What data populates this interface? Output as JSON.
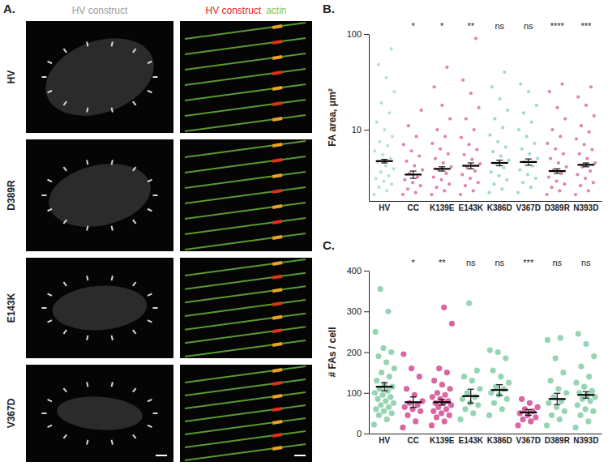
{
  "panel_a": {
    "letter": "A.",
    "column_titles": [
      {
        "parts": [
          {
            "text": "HV construct",
            "color": "#9a9a9a"
          }
        ]
      },
      {
        "parts": [
          {
            "text": "HV construct",
            "color": "#e0201c"
          },
          {
            "text": "actin",
            "color": "#8bc34a"
          }
        ]
      }
    ],
    "rows": [
      "HV",
      "D389R",
      "E143K",
      "V367D"
    ]
  },
  "chart_data": [
    {
      "type": "scatter",
      "panel_label": "B.",
      "y_label": "FA area, μm²",
      "log": "y",
      "categories": [
        "HV",
        "CC",
        "K139E",
        "E143K",
        "K386D",
        "V367D",
        "D389R",
        "N393D"
      ],
      "colors": [
        "#93d4aa",
        "#d0408c",
        "#d0408c",
        "#d0408c",
        "#6cc3bd",
        "#6cc3bd",
        "#d0408c",
        "#d0408c"
      ],
      "ylim": [
        1.8,
        100
      ],
      "yticks": [
        10,
        100
      ],
      "annotations": [
        null,
        "*",
        "*",
        "**",
        "ns",
        "ns",
        "****",
        "***"
      ],
      "mean": [
        4.7,
        3.4,
        3.9,
        4.2,
        4.5,
        4.6,
        3.7,
        4.3
      ],
      "sem": [
        0.2,
        0.3,
        0.2,
        0.3,
        0.3,
        0.35,
        0.2,
        0.2
      ],
      "points": [
        [
          2.1,
          2.3,
          2.5,
          2.7,
          2.9,
          3.1,
          3.3,
          3.6,
          3.9,
          4.2,
          4.6,
          5,
          5.5,
          6,
          6.8,
          7.5,
          8.5,
          10,
          12,
          15,
          19,
          25,
          35,
          48,
          70
        ],
        [
          2.1,
          2.2,
          2.4,
          2.6,
          2.8,
          3,
          3.2,
          3.5,
          3.8,
          4.2,
          4.7,
          5.3,
          6,
          7,
          8.5,
          11,
          16
        ],
        [
          2.1,
          2.3,
          2.5,
          2.7,
          3,
          3.2,
          3.5,
          3.8,
          4.1,
          4.5,
          5,
          5.6,
          6.3,
          7.2,
          8.5,
          10,
          13,
          18,
          28,
          45
        ],
        [
          2.1,
          2.3,
          2.6,
          2.8,
          3.1,
          3.4,
          3.7,
          4,
          4.4,
          4.9,
          5.5,
          6.2,
          7,
          8.3,
          10,
          13,
          17,
          24,
          33,
          90
        ],
        [
          2.2,
          2.4,
          2.7,
          3,
          3.3,
          3.6,
          4,
          4.4,
          4.8,
          5.3,
          5.9,
          6.6,
          7.5,
          8.8,
          10.5,
          13,
          16,
          21,
          28,
          40
        ],
        [
          2.2,
          2.5,
          2.8,
          3.1,
          3.4,
          3.8,
          4.2,
          4.6,
          5,
          5.6,
          6.3,
          7.2,
          8.5,
          10,
          12,
          15,
          18,
          25,
          30
        ],
        [
          2.1,
          2.3,
          2.5,
          2.7,
          2.9,
          3.2,
          3.5,
          3.8,
          4.1,
          4.5,
          5,
          5.6,
          6.3,
          7.2,
          8.5,
          10,
          13,
          17,
          25,
          30
        ],
        [
          2.1,
          2.3,
          2.6,
          2.8,
          3.1,
          3.4,
          3.7,
          4.1,
          4.5,
          5,
          5.6,
          6.2,
          7,
          8,
          9.5,
          11,
          14,
          18,
          22,
          28
        ]
      ]
    },
    {
      "type": "scatter",
      "panel_label": "C.",
      "y_label": "# FAs / cell",
      "categories": [
        "HV",
        "CC",
        "K139E",
        "E143K",
        "K386D",
        "V367D",
        "D389R",
        "N393D"
      ],
      "colors": [
        "#7ccaa0",
        "#d0408c",
        "#d0408c",
        "#7ccaa0",
        "#7ccaa0",
        "#d0408c",
        "#7ccaa0",
        "#7ccaa0"
      ],
      "ylim": [
        0,
        400
      ],
      "yticks": [
        0,
        100,
        200,
        300,
        400
      ],
      "annotations": [
        null,
        "*",
        "**",
        "ns",
        "ns",
        "***",
        "ns",
        "ns"
      ],
      "mean": [
        115,
        77,
        77,
        92,
        107,
        52,
        85,
        95
      ],
      "sem": [
        10,
        13,
        7,
        17,
        13,
        7,
        14,
        8
      ],
      "points": [
        [
          22,
          35,
          45,
          50,
          55,
          60,
          65,
          70,
          75,
          80,
          85,
          90,
          95,
          100,
          105,
          110,
          115,
          120,
          130,
          140,
          150,
          160,
          175,
          190,
          200,
          210,
          250,
          300,
          355
        ],
        [
          15,
          30,
          45,
          55,
          60,
          65,
          70,
          75,
          80,
          95,
          110,
          140,
          160,
          195
        ],
        [
          20,
          30,
          40,
          45,
          50,
          55,
          60,
          65,
          70,
          75,
          75,
          80,
          85,
          90,
          95,
          100,
          110,
          120,
          130,
          150,
          160,
          270,
          310
        ],
        [
          35,
          50,
          60,
          70,
          75,
          85,
          90,
          100,
          110,
          130,
          140,
          155,
          320
        ],
        [
          45,
          60,
          75,
          85,
          95,
          100,
          110,
          115,
          125,
          140,
          155,
          185,
          200,
          205
        ],
        [
          20,
          30,
          35,
          40,
          45,
          50,
          55,
          60,
          65,
          75,
          85
        ],
        [
          20,
          35,
          45,
          55,
          65,
          75,
          80,
          90,
          100,
          110,
          130,
          150,
          185,
          230,
          235
        ],
        [
          15,
          30,
          45,
          55,
          60,
          70,
          80,
          85,
          90,
          95,
          100,
          105,
          115,
          125,
          140,
          165,
          190,
          220,
          245
        ]
      ]
    }
  ]
}
